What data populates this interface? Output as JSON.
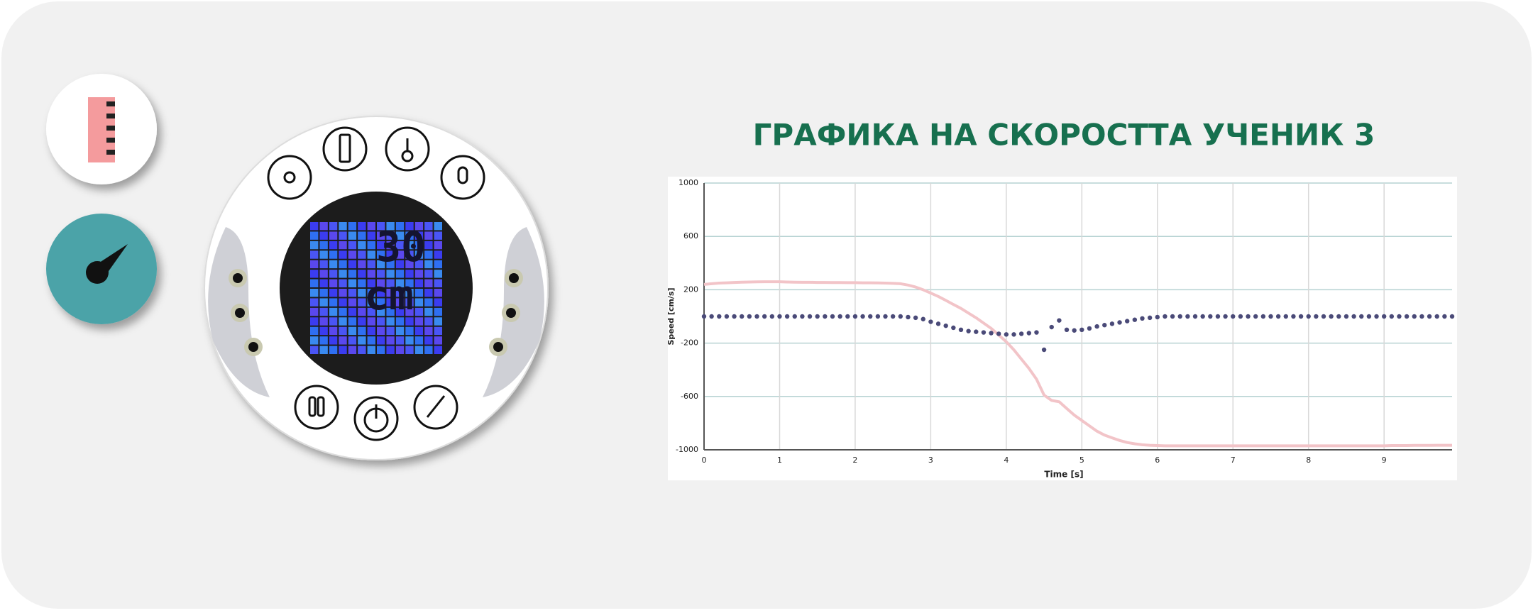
{
  "device": {
    "display": {
      "line1": "30",
      "line2": "cm"
    }
  },
  "chart_data": {
    "type": "line",
    "title": "ГРАФИКА НА СКОРОСТТА УЧЕНИК 3",
    "x_label": "Time [s]",
    "y_label": "Speed [cm/s]",
    "xlim": [
      0,
      9.9
    ],
    "xticks": [
      0,
      1,
      2,
      3,
      4,
      5,
      6,
      7,
      8,
      9
    ],
    "ylim": [
      -1000,
      1000
    ],
    "yticks": [
      -1000,
      -600,
      -200,
      200,
      600,
      1000
    ],
    "grid": true,
    "x": [
      0,
      0.1,
      0.2,
      0.3,
      0.4,
      0.5,
      0.6,
      0.7,
      0.8,
      0.9,
      1,
      1.1,
      1.2,
      1.3,
      1.4,
      1.5,
      1.6,
      1.7,
      1.8,
      1.9,
      2,
      2.1,
      2.2,
      2.3,
      2.4,
      2.5,
      2.6,
      2.7,
      2.8,
      2.9,
      3,
      3.1,
      3.2,
      3.3,
      3.4,
      3.5,
      3.6,
      3.7,
      3.8,
      3.9,
      4,
      4.1,
      4.2,
      4.3,
      4.4,
      4.5,
      4.6,
      4.7,
      4.8,
      4.9,
      5,
      5.1,
      5.2,
      5.3,
      5.4,
      5.5,
      5.6,
      5.7,
      5.8,
      5.9,
      6,
      6.1,
      6.2,
      6.3,
      6.4,
      6.5,
      6.6,
      6.7,
      6.8,
      6.9,
      7,
      7.1,
      7.2,
      7.3,
      7.4,
      7.5,
      7.6,
      7.7,
      7.8,
      7.9,
      8,
      8.1,
      8.2,
      8.3,
      8.4,
      8.5,
      8.6,
      8.7,
      8.8,
      8.9,
      9,
      9.1,
      9.2,
      9.3,
      9.4,
      9.5,
      9.6,
      9.7,
      9.8,
      9.9
    ],
    "series": [
      {
        "style": "line",
        "color": "#f2c4c8",
        "values": [
          240,
          245,
          250,
          252,
          255,
          257,
          258,
          259,
          260,
          260,
          260,
          258,
          257,
          256,
          256,
          255,
          255,
          254,
          254,
          253,
          253,
          252,
          252,
          251,
          250,
          248,
          245,
          235,
          220,
          200,
          175,
          150,
          120,
          90,
          60,
          25,
          -10,
          -50,
          -90,
          -140,
          -190,
          -250,
          -320,
          -390,
          -470,
          -590,
          -630,
          -640,
          -690,
          -740,
          -780,
          -820,
          -860,
          -890,
          -910,
          -930,
          -945,
          -955,
          -962,
          -966,
          -968,
          -970,
          -970,
          -970,
          -970,
          -970,
          -970,
          -970,
          -970,
          -970,
          -970,
          -970,
          -970,
          -970,
          -970,
          -970,
          -970,
          -970,
          -970,
          -970,
          -970,
          -970,
          -970,
          -970,
          -970,
          -970,
          -970,
          -970,
          -970,
          -970,
          -970,
          -968,
          -968,
          -968,
          -967,
          -967,
          -967,
          -966,
          -966,
          -966
        ]
      },
      {
        "style": "markers",
        "color": "#4a4a78",
        "values": [
          0,
          0,
          0,
          0,
          0,
          0,
          0,
          0,
          0,
          0,
          0,
          0,
          0,
          0,
          0,
          0,
          0,
          0,
          0,
          0,
          0,
          0,
          0,
          0,
          0,
          0,
          0,
          -5,
          -10,
          -20,
          -40,
          -55,
          -70,
          -85,
          -100,
          -110,
          -115,
          -120,
          -125,
          -130,
          -135,
          -135,
          -130,
          -125,
          -120,
          -250,
          -80,
          -30,
          -100,
          -105,
          -100,
          -90,
          -75,
          -65,
          -55,
          -45,
          -35,
          -25,
          -15,
          -10,
          -5,
          0,
          0,
          0,
          0,
          0,
          0,
          0,
          0,
          0,
          0,
          0,
          0,
          0,
          0,
          0,
          0,
          0,
          0,
          0,
          0,
          0,
          0,
          0,
          0,
          0,
          0,
          0,
          0,
          0,
          0,
          0,
          0,
          0,
          0,
          0,
          0,
          0,
          0,
          0
        ]
      }
    ]
  }
}
